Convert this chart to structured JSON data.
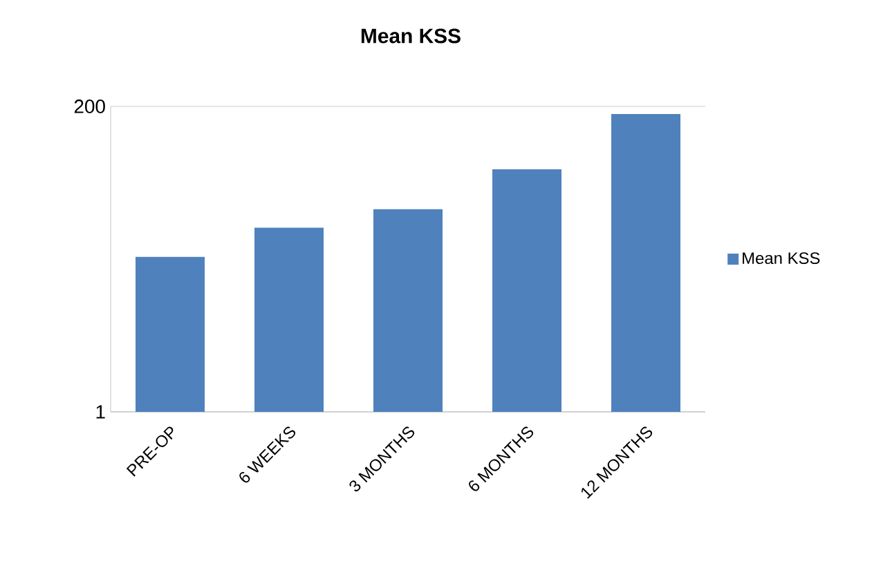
{
  "chart_data": {
    "type": "bar",
    "title": "Mean KSS",
    "categories": [
      "PRE-OP",
      "6 WEEKS",
      "3 MONTHS",
      "6 MONTHS",
      "12 MONTHS"
    ],
    "series": [
      {
        "name": "Mean KSS",
        "color": "#4f81bd",
        "values": [
          102,
          121,
          133,
          159,
          195
        ]
      }
    ],
    "ylim": [
      1,
      200
    ],
    "yticks": [
      1,
      200
    ],
    "grid": "y",
    "legend": "right"
  }
}
